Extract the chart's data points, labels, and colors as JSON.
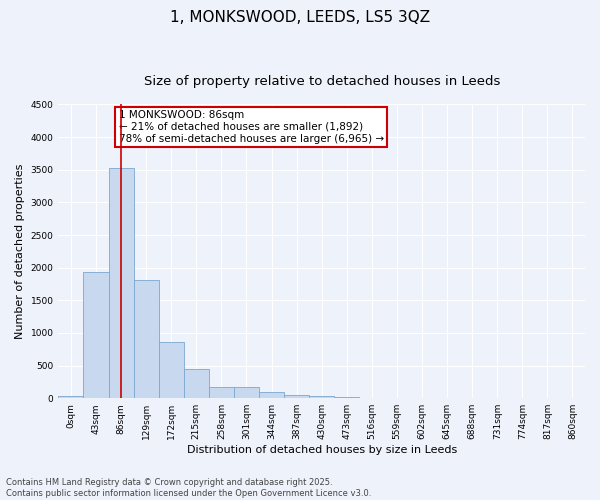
{
  "title": "1, MONKSWOOD, LEEDS, LS5 3QZ",
  "subtitle": "Size of property relative to detached houses in Leeds",
  "xlabel": "Distribution of detached houses by size in Leeds",
  "ylabel": "Number of detached properties",
  "bar_labels": [
    "0sqm",
    "43sqm",
    "86sqm",
    "129sqm",
    "172sqm",
    "215sqm",
    "258sqm",
    "301sqm",
    "344sqm",
    "387sqm",
    "430sqm",
    "473sqm",
    "516sqm",
    "559sqm",
    "602sqm",
    "645sqm",
    "688sqm",
    "731sqm",
    "774sqm",
    "817sqm",
    "860sqm"
  ],
  "bar_values": [
    30,
    1930,
    3530,
    1810,
    860,
    450,
    170,
    165,
    90,
    55,
    40,
    25,
    10,
    5,
    3,
    2,
    1,
    1,
    0,
    0,
    0
  ],
  "bar_color": "#c8d8ee",
  "bar_edge_color": "#7ba8d0",
  "vline_x_index": 2,
  "vline_color": "#cc0000",
  "ylim": [
    0,
    4500
  ],
  "yticks": [
    0,
    500,
    1000,
    1500,
    2000,
    2500,
    3000,
    3500,
    4000,
    4500
  ],
  "annotation_text": "1 MONKSWOOD: 86sqm\n← 21% of detached houses are smaller (1,892)\n78% of semi-detached houses are larger (6,965) →",
  "annotation_box_color": "#cc0000",
  "footer_line1": "Contains HM Land Registry data © Crown copyright and database right 2025.",
  "footer_line2": "Contains public sector information licensed under the Open Government Licence v3.0.",
  "background_color": "#eef2fb",
  "grid_color": "#ffffff",
  "title_fontsize": 11,
  "subtitle_fontsize": 9.5,
  "axis_label_fontsize": 8,
  "tick_fontsize": 6.5,
  "annotation_fontsize": 7.5,
  "footer_fontsize": 6
}
